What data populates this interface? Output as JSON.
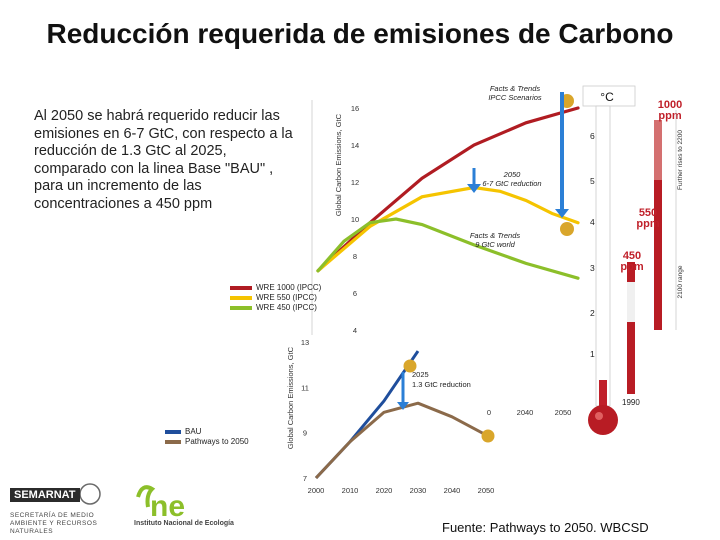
{
  "title": "Reducción requerida de emisiones de Carbono",
  "description": "Al 2050 se habrá requerido reducir las emisiones en  6-7 GtC, con respecto a la reducción de 1.3 GtC al 2025, comparado con la linea Base \"BAU\" , para un incremento de las concentraciones a 450 ppm",
  "source": "Fuente:  Pathways to 2050. WBCSD",
  "logos": {
    "semarnat": "SEMARNAT",
    "semarnat_sub": "SECRETARÍA DE MEDIO AMBIENTE Y RECURSOS NATURALES",
    "ine": "Instituto Nacional de Ecología"
  },
  "colors": {
    "wre1000": "#b01c22",
    "wre550": "#f5c400",
    "wre450": "#8cbf2a",
    "bau": "#1f4e9c",
    "pathways": "#8b6a4a",
    "arrow": "#2b7fd6",
    "marker": "#d9a62b"
  },
  "chart_data": [
    {
      "type": "line",
      "ylabel": "Global Carbon Emissions, GtC",
      "y_ticks": [
        "16",
        "14",
        "12",
        "10",
        "8",
        "6",
        "4"
      ],
      "ylim": [
        4,
        16
      ],
      "xlim": [
        2000,
        2100
      ],
      "series": [
        {
          "name": "WRE 1000 (IPCC)",
          "x": [
            2000,
            2020,
            2040,
            2060,
            2080,
            2100
          ],
          "values": [
            7.2,
            9.8,
            12.2,
            14.0,
            15.2,
            16.0
          ]
        },
        {
          "name": "WRE 550 (IPCC)",
          "x": [
            2000,
            2020,
            2040,
            2060,
            2070,
            2080,
            2090,
            2100
          ],
          "values": [
            7.2,
            9.6,
            11.2,
            11.7,
            11.5,
            11.0,
            10.3,
            9.8
          ]
        },
        {
          "name": "WRE 450 (IPCC)",
          "x": [
            2000,
            2010,
            2020,
            2030,
            2040,
            2060,
            2080,
            2100
          ],
          "values": [
            7.2,
            8.8,
            9.8,
            10.0,
            9.7,
            8.6,
            7.6,
            6.8
          ]
        }
      ],
      "legend": [
        {
          "label": "WRE 1000 (IPCC)",
          "color": "#b01c22"
        },
        {
          "label": "WRE 550 (IPCC)",
          "color": "#f5c400"
        },
        {
          "label": "WRE 450 (IPCC)",
          "color": "#8cbf2a"
        }
      ],
      "annotations": [
        {
          "text": "Facts & Trends",
          "text2": "IPCC Scenarios"
        },
        {
          "text": "2050",
          "text2": "6-7 GtC reduction"
        },
        {
          "text": "Facts & Trends",
          "text2": "9 GtC world"
        }
      ]
    },
    {
      "type": "line",
      "ylabel": "Global Carbon Emissions, GtC",
      "y_ticks": [
        "13",
        "11",
        "9",
        "7"
      ],
      "ylim": [
        7,
        13
      ],
      "x_ticks": [
        "2000",
        "2010",
        "2020",
        "2030",
        "2040",
        "2050"
      ],
      "xlim": [
        2000,
        2050
      ],
      "series": [
        {
          "name": "BAU",
          "x": [
            2000,
            2010,
            2020,
            2030
          ],
          "values": [
            7.0,
            8.6,
            10.4,
            12.6
          ]
        },
        {
          "name": "Pathways to 2050",
          "x": [
            2000,
            2010,
            2020,
            2030,
            2040,
            2050
          ],
          "values": [
            7.0,
            8.6,
            9.9,
            10.3,
            9.7,
            8.9
          ]
        }
      ],
      "legend": [
        {
          "label": "BAU",
          "color": "#1f4e9c"
        },
        {
          "label": "Pathways to 2050",
          "color": "#8b6a4a"
        }
      ],
      "annotations": [
        {
          "text": "2025",
          "text2": "1.3 GtC reduction"
        }
      ]
    },
    {
      "type": "thermometer",
      "unit_label": "°C",
      "scale": [
        "6 -",
        "5 -",
        "4 -",
        "3 -",
        "2 -",
        "1 -"
      ],
      "ppm_labels": [
        {
          "value": "1000",
          "unit": "ppm"
        },
        {
          "value": "550",
          "unit": "ppm"
        },
        {
          "value": "450",
          "unit": "ppm"
        }
      ],
      "bar_labels": [
        "Further rises to 2200",
        "2100 range"
      ],
      "year_labels": [
        "1990"
      ],
      "partial_x_ticks": [
        "0",
        "2040",
        "2050"
      ]
    }
  ]
}
